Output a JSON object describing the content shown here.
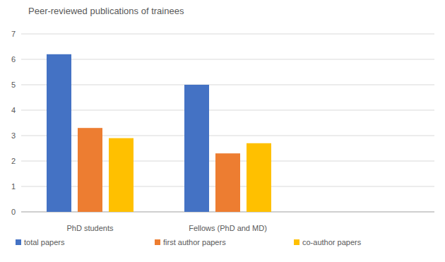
{
  "chart_data": {
    "type": "bar",
    "title": "Peer-reviewed publications of trainees",
    "categories": [
      "PhD students",
      "Fellows (PhD and MD)",
      null
    ],
    "series": [
      {
        "name": "total papers",
        "color": "#4472c4",
        "values": [
          6.2,
          5.0,
          null
        ]
      },
      {
        "name": "first author papers",
        "color": "#ed7d31",
        "values": [
          3.3,
          2.3,
          null
        ]
      },
      {
        "name": "co-author papers",
        "color": "#ffc000",
        "values": [
          2.9,
          2.7,
          null
        ]
      }
    ],
    "ylim": [
      0,
      7
    ],
    "yticks": [
      0,
      1,
      2,
      3,
      4,
      5,
      6,
      7
    ],
    "grid": true,
    "legend": "bottom"
  }
}
